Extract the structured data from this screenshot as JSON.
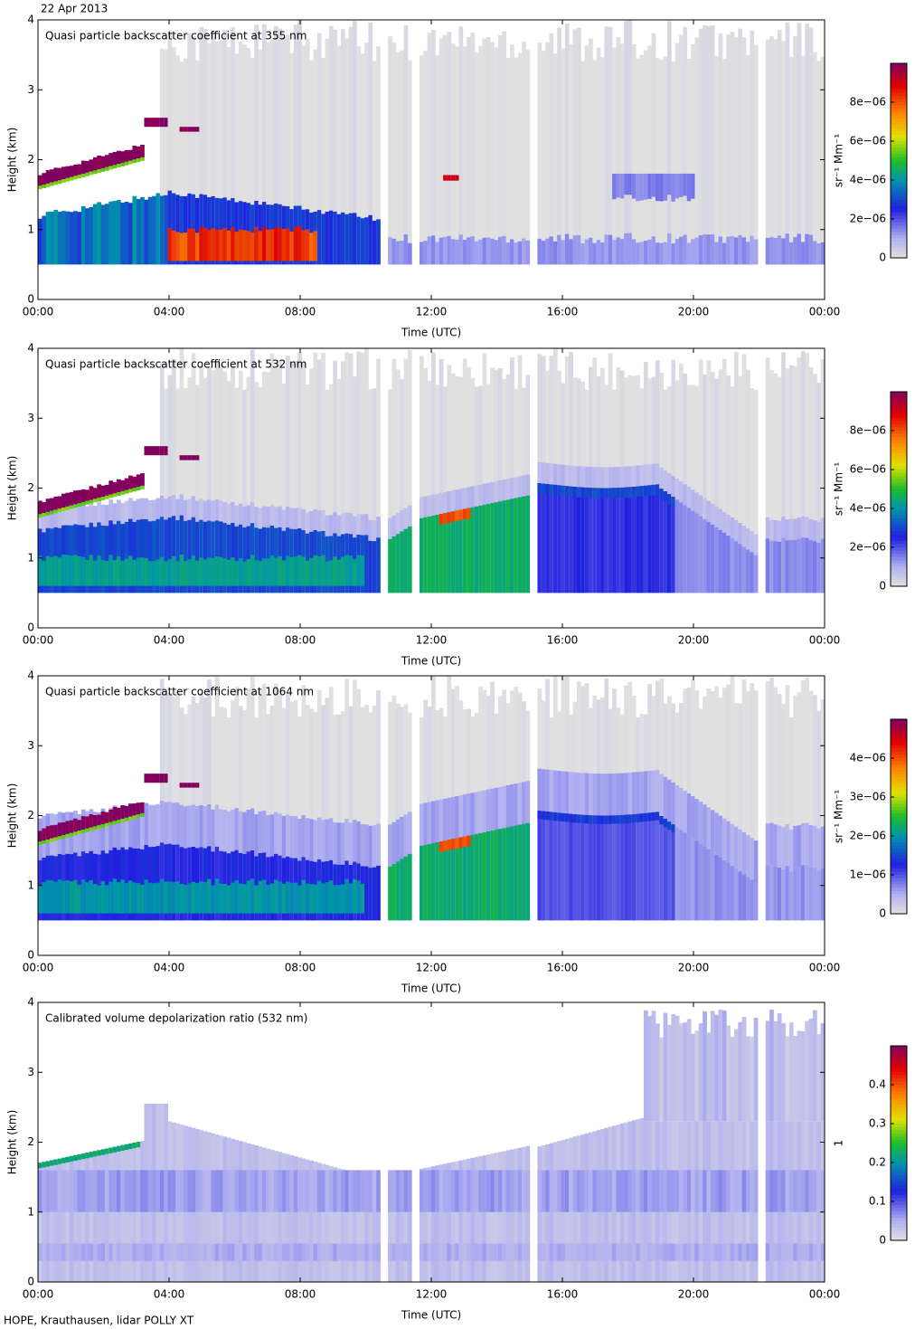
{
  "header": {
    "date": "22 Apr 2013"
  },
  "footer": {
    "credit": "HOPE, Krauthausen, lidar POLLY XT"
  },
  "chart_data": [
    {
      "type": "heatmap",
      "title": "Quasi particle backscatter coefficient at 355 nm",
      "x_label": "Time (UTC)",
      "y_label": "Height (km)",
      "xlim": [
        0,
        24
      ],
      "xticks": [
        {
          "value": 0,
          "label": "00:00"
        },
        {
          "value": 4,
          "label": "04:00"
        },
        {
          "value": 8,
          "label": "08:00"
        },
        {
          "value": 12,
          "label": "12:00"
        },
        {
          "value": 16,
          "label": "16:00"
        },
        {
          "value": 20,
          "label": "20:00"
        },
        {
          "value": 24,
          "label": "00:00"
        }
      ],
      "ylim": [
        0,
        4
      ],
      "yticks": [
        0,
        1,
        2,
        3,
        4
      ],
      "colorbar": {
        "label": "sr⁻¹ Mm⁻¹",
        "lim": [
          0,
          1e-05
        ],
        "ticks": [
          0,
          {
            "value": 2e-06,
            "label": "2e−06"
          },
          {
            "value": 4e-06,
            "label": "4e−06"
          },
          {
            "value": 6e-06,
            "label": "6e−06"
          },
          {
            "value": 8e-06,
            "label": "8e−06"
          }
        ]
      }
    },
    {
      "type": "heatmap",
      "title": "Quasi particle backscatter coefficient at 532 nm",
      "x_label": "Time (UTC)",
      "y_label": "Height (km)",
      "xlim": [
        0,
        24
      ],
      "xticks": [
        {
          "value": 0,
          "label": "00:00"
        },
        {
          "value": 4,
          "label": "04:00"
        },
        {
          "value": 8,
          "label": "08:00"
        },
        {
          "value": 12,
          "label": "12:00"
        },
        {
          "value": 16,
          "label": "16:00"
        },
        {
          "value": 20,
          "label": "20:00"
        },
        {
          "value": 24,
          "label": "00:00"
        }
      ],
      "ylim": [
        0,
        4
      ],
      "yticks": [
        0,
        1,
        2,
        3,
        4
      ],
      "colorbar": {
        "label": "sr⁻¹ Mm⁻¹",
        "lim": [
          0,
          1e-05
        ],
        "ticks": [
          0,
          {
            "value": 2e-06,
            "label": "2e−06"
          },
          {
            "value": 4e-06,
            "label": "4e−06"
          },
          {
            "value": 6e-06,
            "label": "6e−06"
          },
          {
            "value": 8e-06,
            "label": "8e−06"
          }
        ]
      }
    },
    {
      "type": "heatmap",
      "title": "Quasi particle backscatter coefficient at 1064 nm",
      "x_label": "Time (UTC)",
      "y_label": "Height (km)",
      "xlim": [
        0,
        24
      ],
      "xticks": [
        {
          "value": 0,
          "label": "00:00"
        },
        {
          "value": 4,
          "label": "04:00"
        },
        {
          "value": 8,
          "label": "08:00"
        },
        {
          "value": 12,
          "label": "12:00"
        },
        {
          "value": 16,
          "label": "16:00"
        },
        {
          "value": 20,
          "label": "20:00"
        },
        {
          "value": 24,
          "label": "00:00"
        }
      ],
      "ylim": [
        0,
        4
      ],
      "yticks": [
        0,
        1,
        2,
        3,
        4
      ],
      "colorbar": {
        "label": "sr⁻¹ Mm⁻¹",
        "lim": [
          0,
          5e-06
        ],
        "ticks": [
          0,
          {
            "value": 1e-06,
            "label": "1e−06"
          },
          {
            "value": 2e-06,
            "label": "2e−06"
          },
          {
            "value": 3e-06,
            "label": "3e−06"
          },
          {
            "value": 4e-06,
            "label": "4e−06"
          }
        ]
      }
    },
    {
      "type": "heatmap",
      "title": "Calibrated volume depolarization ratio (532 nm)",
      "x_label": "Time (UTC)",
      "y_label": "Height (km)",
      "xlim": [
        0,
        24
      ],
      "xticks": [
        {
          "value": 0,
          "label": "00:00"
        },
        {
          "value": 4,
          "label": "04:00"
        },
        {
          "value": 8,
          "label": "08:00"
        },
        {
          "value": 12,
          "label": "12:00"
        },
        {
          "value": 16,
          "label": "16:00"
        },
        {
          "value": 20,
          "label": "20:00"
        },
        {
          "value": 24,
          "label": "00:00"
        }
      ],
      "ylim": [
        0,
        4
      ],
      "yticks": [
        0,
        1,
        2,
        3,
        4
      ],
      "colorbar": {
        "label": "1",
        "lim": [
          0,
          0.5
        ],
        "ticks": [
          0,
          0.1,
          0.2,
          0.3,
          0.4
        ]
      }
    }
  ]
}
